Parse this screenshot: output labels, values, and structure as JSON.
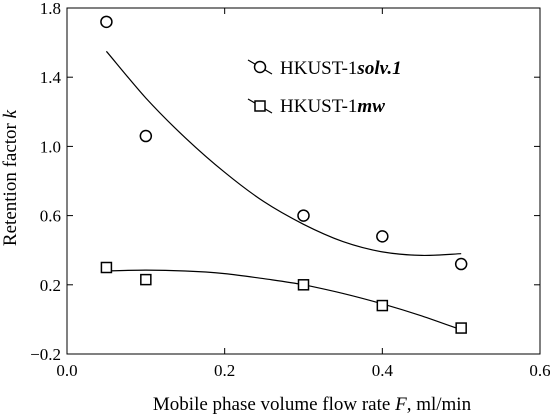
{
  "chart_data": {
    "type": "scatter",
    "title": "",
    "xlabel_main": "Mobile phase volume flow rate ",
    "xlabel_var": "F",
    "xlabel_unit": ", ml/min",
    "ylabel_main": "Retention factor ",
    "ylabel_var": "k",
    "xlim": [
      0.0,
      0.6
    ],
    "ylim": [
      -0.2,
      1.8
    ],
    "xticks": [
      0.0,
      0.2,
      0.4,
      0.6
    ],
    "xtick_labels": [
      "0.0",
      "0.2",
      "0.4",
      "0.6"
    ],
    "yticks": [
      -0.2,
      0.2,
      0.6,
      1.0,
      1.4,
      1.8
    ],
    "ytick_labels": [
      "−0.2",
      "0.2",
      "0.6",
      "1.0",
      "1.4",
      "1.8"
    ],
    "grid": false,
    "legend_position": "top-right",
    "series": [
      {
        "name_prefix": "HKUST-1",
        "name_suffix": "solv.1",
        "marker": "circle",
        "x": [
          0.05,
          0.1,
          0.3,
          0.4,
          0.5
        ],
        "y": [
          1.72,
          1.06,
          0.6,
          0.48,
          0.32
        ],
        "fit_x": [
          0.05,
          0.1,
          0.15,
          0.2,
          0.25,
          0.3,
          0.35,
          0.4,
          0.45,
          0.5
        ],
        "fit_y": [
          1.55,
          1.28,
          1.05,
          0.85,
          0.68,
          0.55,
          0.45,
          0.39,
          0.37,
          0.38
        ]
      },
      {
        "name_prefix": "HKUST-1",
        "name_suffix": "mw",
        "marker": "square",
        "x": [
          0.05,
          0.1,
          0.3,
          0.4,
          0.5
        ],
        "y": [
          0.3,
          0.23,
          0.2,
          0.08,
          -0.05
        ],
        "fit_x": [
          0.05,
          0.1,
          0.15,
          0.2,
          0.25,
          0.3,
          0.35,
          0.4,
          0.45,
          0.5
        ],
        "fit_y": [
          0.28,
          0.285,
          0.28,
          0.265,
          0.235,
          0.2,
          0.15,
          0.09,
          0.02,
          -0.06
        ]
      }
    ]
  }
}
